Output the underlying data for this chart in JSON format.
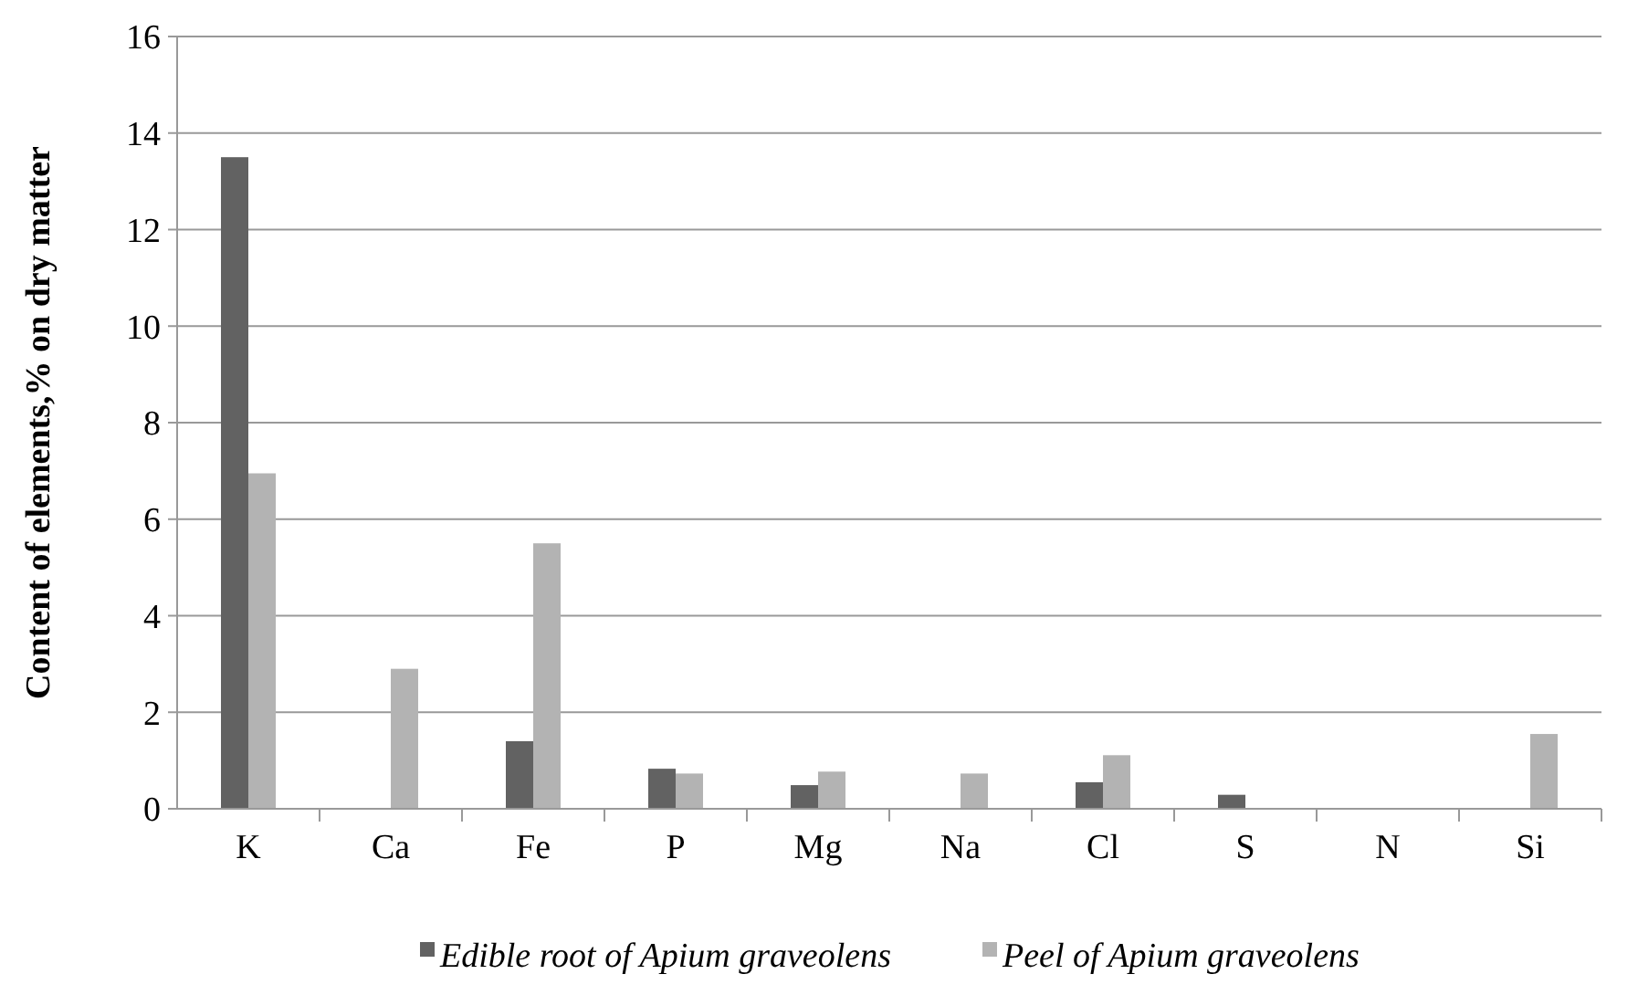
{
  "chart_data": {
    "type": "bar",
    "ylabel": "Content of elements,% on dry matter",
    "categories": [
      "K",
      "Ca",
      "Fe",
      "P",
      "Mg",
      "Na",
      "Cl",
      "S",
      "N",
      "Si"
    ],
    "series": [
      {
        "name": "Edible root of Apium graveolens",
        "color": "#626262",
        "values": [
          13.5,
          null,
          1.4,
          0.83,
          0.49,
          null,
          0.55,
          0.29,
          null,
          null
        ]
      },
      {
        "name": "Peel of Apium graveolens",
        "color": "#b3b3b3",
        "values": [
          6.95,
          2.9,
          5.5,
          0.73,
          0.77,
          0.73,
          1.11,
          null,
          null,
          1.55
        ]
      }
    ],
    "ylim": [
      0,
      16
    ],
    "yticks": [
      0,
      2,
      4,
      6,
      8,
      10,
      12,
      14,
      16
    ],
    "grid": "y",
    "legend": "bottom"
  }
}
